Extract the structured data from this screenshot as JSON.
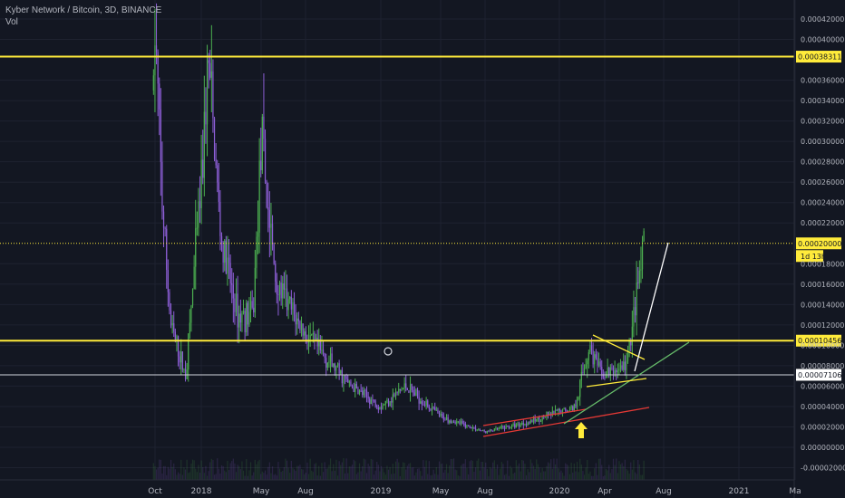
{
  "header": {
    "symbol_line": "Kyber Network / Bitcoin, 3D, BINANCE",
    "volume_label": "Vol"
  },
  "colors": {
    "background": "#131722",
    "up": "#4caf50",
    "down": "#8e5fd8",
    "level": "#ffeb3b",
    "trend_red": "#e53935",
    "trend_green": "#66bb6a",
    "trend_white": "#ffffff",
    "text": "#b2b5be"
  },
  "chart_data": {
    "type": "candlestick",
    "ylim": [
      -3e-05,
      0.00044
    ],
    "y_ticks": [
      "-0.00002000",
      "0.00000000",
      "0.00002000",
      "0.00004000",
      "0.00006000",
      "0.00008000",
      "0.00010000",
      "0.00012000",
      "0.00014000",
      "0.00016000",
      "0.00018000",
      "0.00022000",
      "0.00024000",
      "0.00026000",
      "0.00028000",
      "0.00030000",
      "0.00032000",
      "0.00034000",
      "0.00036000",
      "0.00040000",
      "0.00042000"
    ],
    "x_ticks": [
      "Oct",
      "2018",
      "May",
      "Aug",
      "2019",
      "May",
      "Aug",
      "2020",
      "Apr",
      "Aug",
      "2021",
      "Ma"
    ],
    "series_outline": [
      {
        "t": "2017-09-28",
        "price": 0.00035
      },
      {
        "t": "2017-10-01",
        "price": 0.00041
      },
      {
        "t": "2017-10-15",
        "price": 0.00024
      },
      {
        "t": "2017-11-01",
        "price": 0.00012
      },
      {
        "t": "2017-12-01",
        "price": 7e-05
      },
      {
        "t": "2018-01-01",
        "price": 0.00026
      },
      {
        "t": "2018-01-15",
        "price": 0.00038
      },
      {
        "t": "2018-02-10",
        "price": 0.0002
      },
      {
        "t": "2018-03-15",
        "price": 0.00013
      },
      {
        "t": "2018-04-15",
        "price": 0.00013
      },
      {
        "t": "2018-05-01",
        "price": 0.0003
      },
      {
        "t": "2018-06-01",
        "price": 0.00016
      },
      {
        "t": "2018-08-01",
        "price": 0.00011
      },
      {
        "t": "2018-11-01",
        "price": 6e-05
      },
      {
        "t": "2019-01-01",
        "price": 4e-05
      },
      {
        "t": "2019-02-20",
        "price": 6e-05
      },
      {
        "t": "2019-05-01",
        "price": 3e-05
      },
      {
        "t": "2019-08-01",
        "price": 1.5e-05
      },
      {
        "t": "2019-11-01",
        "price": 2.5e-05
      },
      {
        "t": "2020-02-01",
        "price": 4e-05
      },
      {
        "t": "2020-03-01",
        "price": 0.0001
      },
      {
        "t": "2020-03-25",
        "price": 7e-05
      },
      {
        "t": "2020-05-15",
        "price": 8e-05
      },
      {
        "t": "2020-06-01",
        "price": 0.00013
      },
      {
        "t": "2020-06-22",
        "price": 0.0002
      }
    ],
    "levels": [
      {
        "price_label": "0.00038311",
        "value": 0.00038311,
        "style": "solid"
      },
      {
        "price_label": "0.00020000",
        "value": 0.0002,
        "style": "dotted"
      },
      {
        "price_label": "0.00010456",
        "value": 0.00010456,
        "style": "solid"
      },
      {
        "price_label": "0.00007106",
        "value": 7.106e-05,
        "style": "thin"
      }
    ],
    "countdown": "1d 13h",
    "annotations": [
      "up-arrow",
      "alarm-clock-icon"
    ]
  }
}
